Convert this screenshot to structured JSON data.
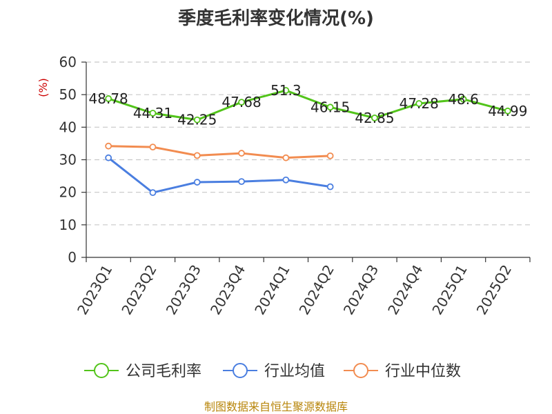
{
  "chart_data": {
    "type": "line",
    "title": "季度毛利率变化情况(%)",
    "ylabel": "(%)",
    "ylim": [
      0,
      60
    ],
    "yticks": [
      0,
      10,
      20,
      30,
      40,
      50,
      60
    ],
    "grid": true,
    "legend_position": "bottom",
    "categories": [
      "2023Q1",
      "2023Q2",
      "2023Q3",
      "2023Q4",
      "2024Q1",
      "2024Q2",
      "2024Q3",
      "2024Q4",
      "2025Q1",
      "2025Q2"
    ],
    "series": [
      {
        "name": "公司毛利率",
        "color": "#52c41a",
        "values": [
          48.78,
          44.31,
          42.25,
          47.68,
          51.3,
          46.15,
          42.85,
          47.28,
          48.6,
          44.99
        ],
        "show_labels": true
      },
      {
        "name": "行业均值",
        "color": "#4a7ee0",
        "values": [
          30.6,
          19.9,
          23.1,
          23.3,
          23.8,
          21.7,
          null,
          null,
          null,
          null
        ],
        "show_labels": false
      },
      {
        "name": "行业中位数",
        "color": "#f28c50",
        "values": [
          34.2,
          33.9,
          31.3,
          32.0,
          30.6,
          31.2,
          null,
          null,
          null,
          null
        ],
        "show_labels": false
      }
    ]
  },
  "source": "制图数据来自恒生聚源数据库"
}
